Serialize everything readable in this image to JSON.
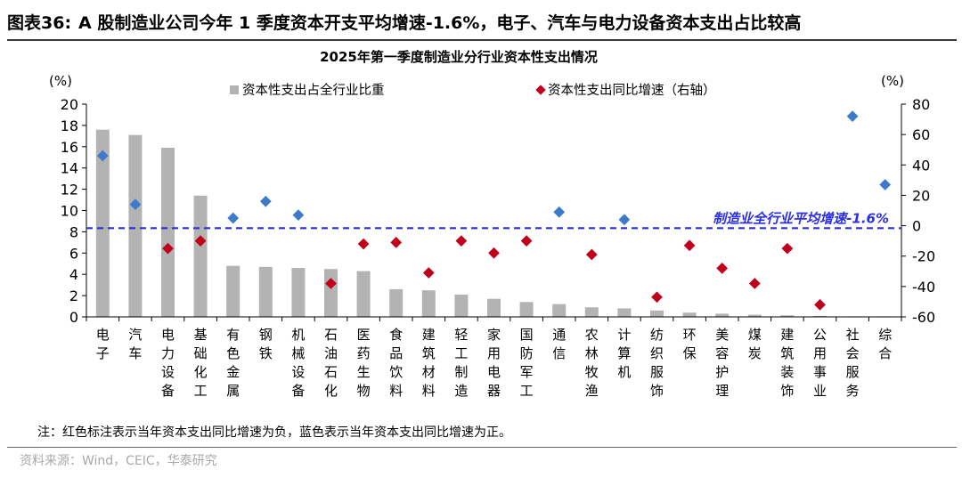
{
  "figure": {
    "label": "图表36:",
    "title": "A 股制造业公司今年 1 季度资本开支平均增速-1.6%，电子、汽车与电力设备资本支出占比较高",
    "note": "注：红色标注表示当年资本支出同比增速为负，蓝色表示当年资本支出同比增速为正。",
    "source": "资料来源：Wind，CEIC，华泰研究"
  },
  "colors": {
    "bar": "#b3b3b3",
    "negative_marker": "#c0001a",
    "positive_marker": "#3d7ac9",
    "reference_line": "#2a2ee8"
  },
  "chart_data": {
    "type": "bar",
    "title": "2025年第一季度制造业分行业资本性支出情况",
    "left_axis": {
      "unit": "(%)",
      "ylim": [
        0,
        20
      ],
      "ticks": [
        0,
        2,
        4,
        6,
        8,
        10,
        12,
        14,
        16,
        18,
        20
      ]
    },
    "right_axis": {
      "unit": "(%)",
      "ylim": [
        -60,
        80
      ],
      "ticks": [
        -60,
        -40,
        -20,
        0,
        20,
        40,
        60,
        80
      ]
    },
    "grid": false,
    "legend_position": "top",
    "categories": [
      "电子",
      "汽车",
      "电力设备",
      "基础化工",
      "有色金属",
      "钢铁",
      "机械设备",
      "石油石化",
      "医药生物",
      "食品饮料",
      "建筑材料",
      "轻工制造",
      "家用电器",
      "国防军工",
      "通信",
      "农林牧渔",
      "计算机",
      "纺织服饰",
      "环保",
      "美容护理",
      "煤炭",
      "建筑装饰",
      "公用事业",
      "社会服务",
      "综合"
    ],
    "series": [
      {
        "name": "资本性支出占全行业比重",
        "kind": "bar",
        "axis": "left",
        "values": [
          17.6,
          17.1,
          15.9,
          11.4,
          4.8,
          4.7,
          4.6,
          4.5,
          4.3,
          2.6,
          2.5,
          2.1,
          1.7,
          1.4,
          1.2,
          0.9,
          0.8,
          0.6,
          0.4,
          0.3,
          0.2,
          0.15,
          0.1,
          0.05,
          0.05
        ]
      },
      {
        "name": "资本性支出同比增速（右轴）",
        "kind": "marker",
        "axis": "right",
        "values": [
          46,
          14,
          -15,
          -10,
          5,
          16,
          7,
          -38,
          -12,
          -11,
          -31,
          -10,
          -18,
          -10,
          9,
          -19,
          4,
          -47,
          -13,
          -28,
          -38,
          -15,
          -52,
          72,
          27
        ]
      }
    ],
    "reference_line": {
      "value": -1.6,
      "axis": "right",
      "label": "制造业全行业平均增速-1.6%"
    }
  }
}
